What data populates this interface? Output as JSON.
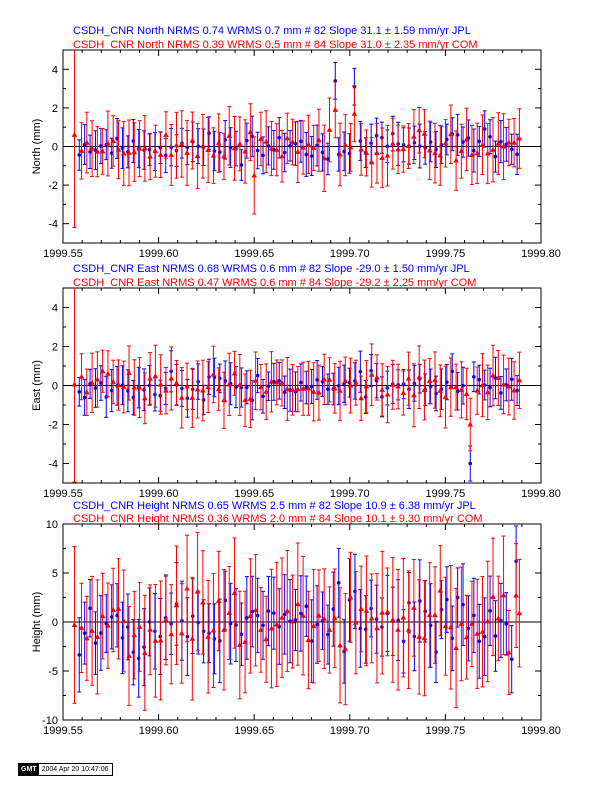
{
  "colors": {
    "jpl": "#0000ff",
    "com": "#ff0000",
    "axis": "#000000"
  },
  "x_tick_labels": [
    "1999.55",
    "1999.60",
    "1999.65",
    "1999.70",
    "1999.75",
    "1999.80"
  ],
  "stamp": {
    "logo": "GMT",
    "timestamp": "2004 Apr 20 10:47:06"
  },
  "chart_data": [
    {
      "type": "scatter",
      "component": "north",
      "title_lines": [
        "CSDH_CNR North NRMS 0.74 WRMS  0.7 mm # 82 Slope  31.1 ±  1.59 mm/yr JPL",
        "CSDH_CNR North NRMS 0.39 WRMS  0.5 mm # 84 Slope  31.0 ±  2.35 mm/yr COM"
      ],
      "ylabel": "North (mm)",
      "xlim": [
        1999.55,
        1999.8
      ],
      "ylim": [
        -5,
        5
      ],
      "yticks": [
        -4,
        -2,
        0,
        2,
        4
      ],
      "x_ticks": [
        1999.55,
        1999.6,
        1999.65,
        1999.7,
        1999.75,
        1999.8
      ],
      "grid": false,
      "series": [
        {
          "name": "JPL",
          "color": "#0000ff",
          "marker": "circle",
          "sigma_base": 0.95,
          "seed": 11,
          "scatter": 0.35,
          "points": [
            {
              "x": 1999.6924,
              "y": 3.4,
              "err": 0.95
            },
            {
              "x": 1999.7024,
              "y": 3.1,
              "err": 0.95
            }
          ]
        },
        {
          "name": "COM",
          "color": "#ff0000",
          "marker": "triangle",
          "sigma_base": 1.45,
          "seed": 23,
          "scatter": 0.35,
          "points": [
            {
              "x": 1999.556,
              "y": 0.6,
              "err": 4.8
            },
            {
              "x": 1999.65,
              "y": -1.5,
              "err": 2.0
            },
            {
              "x": 1999.6924,
              "y": 1.9,
              "err": 1.45
            },
            {
              "x": 1999.7024,
              "y": 1.7,
              "err": 1.45
            }
          ]
        }
      ]
    },
    {
      "type": "scatter",
      "component": "east",
      "title_lines": [
        "CSDH_CNR East NRMS 0.68 WRMS  0.6 mm # 82 Slope  -29.0 ±  1.50 mm/yr JPL",
        "CSDH_CNR East NRMS 0.47 WRMS  0.6 mm # 84 Slope  -29.2 ±  2.25 mm/yr COM"
      ],
      "ylabel": "East (mm)",
      "xlim": [
        1999.55,
        1999.8
      ],
      "ylim": [
        -5,
        5
      ],
      "yticks": [
        -4,
        -2,
        0,
        2,
        4
      ],
      "x_ticks": [
        1999.55,
        1999.6,
        1999.65,
        1999.7,
        1999.75,
        1999.8
      ],
      "grid": false,
      "series": [
        {
          "name": "JPL",
          "color": "#0000ff",
          "marker": "circle",
          "sigma_base": 0.9,
          "seed": 37,
          "scatter": 0.35,
          "points": [
            {
              "x": 1999.763,
              "y": -4.0,
              "err": 0.9
            }
          ]
        },
        {
          "name": "COM",
          "color": "#ff0000",
          "marker": "triangle",
          "sigma_base": 1.35,
          "seed": 41,
          "scatter": 0.35,
          "points": [
            {
              "x": 1999.556,
              "y": 0.05,
              "err": 5.0
            },
            {
              "x": 1999.763,
              "y": -2.0,
              "err": 1.35
            }
          ]
        }
      ]
    },
    {
      "type": "scatter",
      "component": "height",
      "title_lines": [
        "CSDH_CNR Height NRMS 0.65 WRMS  2.5 mm # 82 Slope  10.9 ±  6.38 mm/yr JPL",
        "CSDH_CNR Height NRMS 0.36 WRMS  2.0 mm # 84 Slope  10.1 ±  9.30 mm/yr COM"
      ],
      "ylabel": "Height (mm)",
      "xlim": [
        1999.55,
        1999.8
      ],
      "ylim": [
        -10,
        10
      ],
      "yticks": [
        -10,
        -5,
        0,
        5,
        10
      ],
      "x_ticks": [
        1999.55,
        1999.6,
        1999.65,
        1999.7,
        1999.75,
        1999.8
      ],
      "grid": false,
      "series": [
        {
          "name": "JPL",
          "color": "#0000ff",
          "marker": "circle",
          "sigma_base": 3.6,
          "seed": 53,
          "scatter": 1.6,
          "points": [
            {
              "x": 1999.787,
              "y": 6.2,
              "err": 3.6
            }
          ]
        },
        {
          "name": "COM",
          "color": "#ff0000",
          "marker": "triangle",
          "sigma_base": 5.3,
          "seed": 67,
          "scatter": 1.6,
          "points": [
            {
              "x": 1999.556,
              "y": -0.3,
              "err": 8.0
            },
            {
              "x": 1999.787,
              "y": 2.7,
              "err": 5.3
            }
          ]
        }
      ]
    }
  ]
}
